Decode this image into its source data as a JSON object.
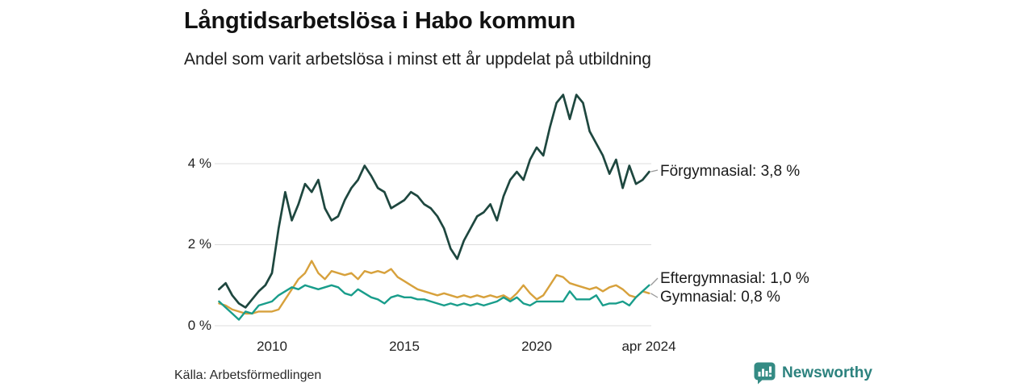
{
  "colors": {
    "forgymnasial_line": "#1e473f",
    "eftergymnasial_line": "#199d8b",
    "gymnasial_line": "#d7a13c",
    "gridline": "#dcdcdc",
    "leader_line": "#999999",
    "brand_teal": "#348b84",
    "text": "#1a1a1a"
  },
  "footer": {
    "source": "Källa: Arbetsförmedlingen",
    "brand": "Newsworthy"
  },
  "chart_data": {
    "type": "line",
    "title": "Långtidsarbetslösa i Habo kommun",
    "subtitle": "Andel som varit arbetslösa i minst ett år uppdelat på utbildning",
    "xlabel": "",
    "ylabel": "",
    "grid": true,
    "legend_position": "right-end-labels",
    "xlim": [
      2007.9,
      2024.45
    ],
    "ylim": [
      0,
      5.85
    ],
    "x_axis": {
      "labels": [
        "2010",
        "2015",
        "2020",
        "apr 2024"
      ],
      "values": [
        2010,
        2015,
        2020,
        2024.25
      ]
    },
    "y_axis": {
      "labels": [
        "4 %",
        "2 %",
        "0 %"
      ],
      "values": [
        4,
        2,
        0
      ]
    },
    "x": [
      2008.0,
      2008.25,
      2008.5,
      2008.75,
      2009.0,
      2009.25,
      2009.5,
      2009.75,
      2010.0,
      2010.25,
      2010.5,
      2010.75,
      2011.0,
      2011.25,
      2011.5,
      2011.75,
      2012.0,
      2012.25,
      2012.5,
      2012.75,
      2013.0,
      2013.25,
      2013.5,
      2013.75,
      2014.0,
      2014.25,
      2014.5,
      2014.75,
      2015.0,
      2015.25,
      2015.5,
      2015.75,
      2016.0,
      2016.25,
      2016.5,
      2016.75,
      2017.0,
      2017.25,
      2017.5,
      2017.75,
      2018.0,
      2018.25,
      2018.5,
      2018.75,
      2019.0,
      2019.25,
      2019.5,
      2019.75,
      2020.0,
      2020.25,
      2020.5,
      2020.75,
      2021.0,
      2021.25,
      2021.5,
      2021.75,
      2022.0,
      2022.25,
      2022.5,
      2022.75,
      2023.0,
      2023.25,
      2023.5,
      2023.75,
      2024.0,
      2024.25
    ],
    "series": [
      {
        "name": "Förgymnasial",
        "end_label": "Förgymnasial: 3,8 %",
        "last_value": "3,8 %",
        "color": "#1e473f",
        "values": [
          0.9,
          1.05,
          0.75,
          0.55,
          0.45,
          0.65,
          0.85,
          1.0,
          1.3,
          2.4,
          3.3,
          2.6,
          3.0,
          3.5,
          3.3,
          3.6,
          2.9,
          2.6,
          2.7,
          3.1,
          3.4,
          3.6,
          3.95,
          3.7,
          3.4,
          3.3,
          2.9,
          3.0,
          3.1,
          3.3,
          3.2,
          3.0,
          2.9,
          2.7,
          2.4,
          1.9,
          1.65,
          2.1,
          2.4,
          2.7,
          2.8,
          3.0,
          2.6,
          3.2,
          3.6,
          3.8,
          3.6,
          4.1,
          4.4,
          4.2,
          4.9,
          5.5,
          5.7,
          5.1,
          5.7,
          5.5,
          4.8,
          4.5,
          4.2,
          3.75,
          4.1,
          3.4,
          3.95,
          3.5,
          3.6,
          3.8
        ]
      },
      {
        "name": "Gymnasial",
        "end_label": "Gymnasial: 0,8 %",
        "last_value": "0,8 %",
        "color": "#d7a13c",
        "values": [
          0.55,
          0.5,
          0.4,
          0.35,
          0.3,
          0.3,
          0.35,
          0.35,
          0.35,
          0.4,
          0.65,
          0.9,
          1.15,
          1.3,
          1.6,
          1.3,
          1.15,
          1.35,
          1.3,
          1.25,
          1.3,
          1.15,
          1.35,
          1.3,
          1.35,
          1.3,
          1.4,
          1.2,
          1.1,
          1.0,
          0.9,
          0.85,
          0.8,
          0.75,
          0.8,
          0.75,
          0.7,
          0.75,
          0.7,
          0.75,
          0.7,
          0.75,
          0.7,
          0.75,
          0.65,
          0.8,
          1.0,
          0.8,
          0.65,
          0.75,
          1.0,
          1.25,
          1.2,
          1.05,
          1.0,
          0.95,
          0.9,
          0.95,
          0.85,
          0.95,
          1.0,
          0.9,
          0.75,
          0.7,
          0.85,
          0.8
        ]
      },
      {
        "name": "Eftergymnasial",
        "end_label": "Eftergymnasial: 1,0 %",
        "last_value": "1,0 %",
        "color": "#199d8b",
        "values": [
          0.6,
          0.45,
          0.3,
          0.15,
          0.35,
          0.3,
          0.5,
          0.55,
          0.6,
          0.75,
          0.85,
          0.95,
          0.9,
          1.0,
          0.95,
          0.9,
          0.95,
          1.0,
          0.95,
          0.8,
          0.75,
          0.9,
          0.8,
          0.7,
          0.65,
          0.55,
          0.7,
          0.75,
          0.7,
          0.7,
          0.65,
          0.65,
          0.6,
          0.55,
          0.5,
          0.55,
          0.5,
          0.55,
          0.5,
          0.55,
          0.5,
          0.55,
          0.6,
          0.7,
          0.6,
          0.7,
          0.55,
          0.5,
          0.6,
          0.6,
          0.6,
          0.6,
          0.6,
          0.85,
          0.65,
          0.65,
          0.65,
          0.75,
          0.5,
          0.55,
          0.55,
          0.6,
          0.5,
          0.7,
          0.85,
          1.0
        ]
      }
    ]
  }
}
